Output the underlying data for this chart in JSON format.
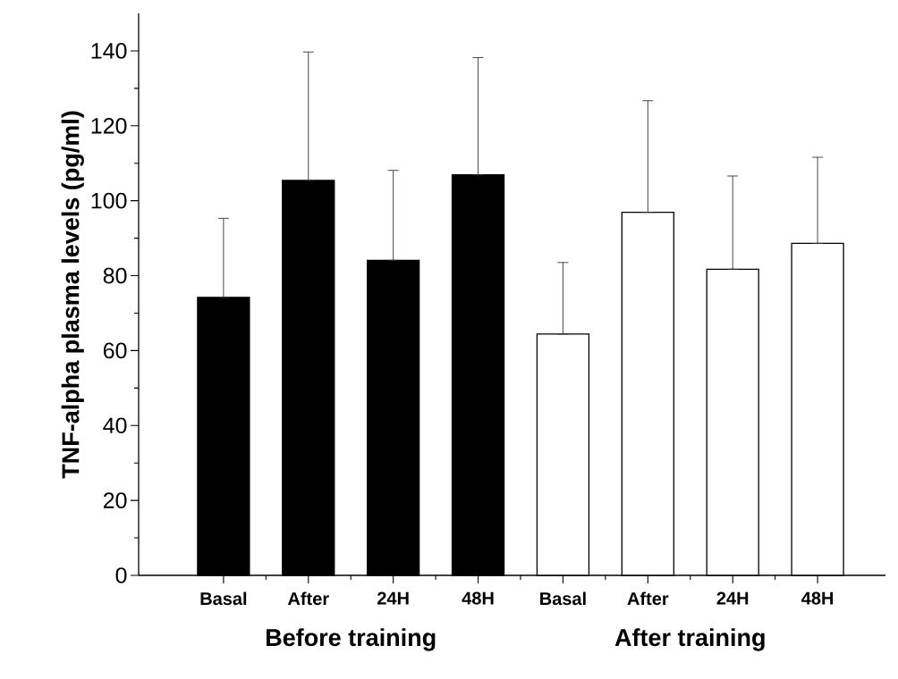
{
  "chart_data": {
    "type": "bar",
    "ylabel": "TNF-alpha plasma levels (pg/ml)",
    "categories": [
      "Basal",
      "After",
      "24H",
      "48H",
      "Basal",
      "After",
      "24H",
      "48H"
    ],
    "series": [
      {
        "name": "Before training",
        "color": "#000000",
        "values": [
          74.2,
          105.4,
          84.1,
          106.9,
          null,
          null,
          null,
          null
        ],
        "errors": [
          [
            74.2,
            95.3
          ],
          [
            105.4,
            139.7
          ],
          [
            84.1,
            108.1
          ],
          [
            106.9,
            138.2
          ],
          null,
          null,
          null,
          null
        ]
      },
      {
        "name": "After training",
        "color": "#ffffff",
        "values": [
          null,
          null,
          null,
          null,
          64.4,
          96.9,
          81.7,
          88.6
        ],
        "errors": [
          null,
          null,
          null,
          null,
          [
            64.4,
            83.5
          ],
          [
            96.9,
            126.7
          ],
          [
            81.7,
            106.6
          ],
          [
            88.6,
            111.6
          ]
        ]
      }
    ],
    "ylim": [
      0,
      150
    ],
    "yticks": [
      0,
      20,
      40,
      60,
      80,
      100,
      120,
      140
    ]
  }
}
